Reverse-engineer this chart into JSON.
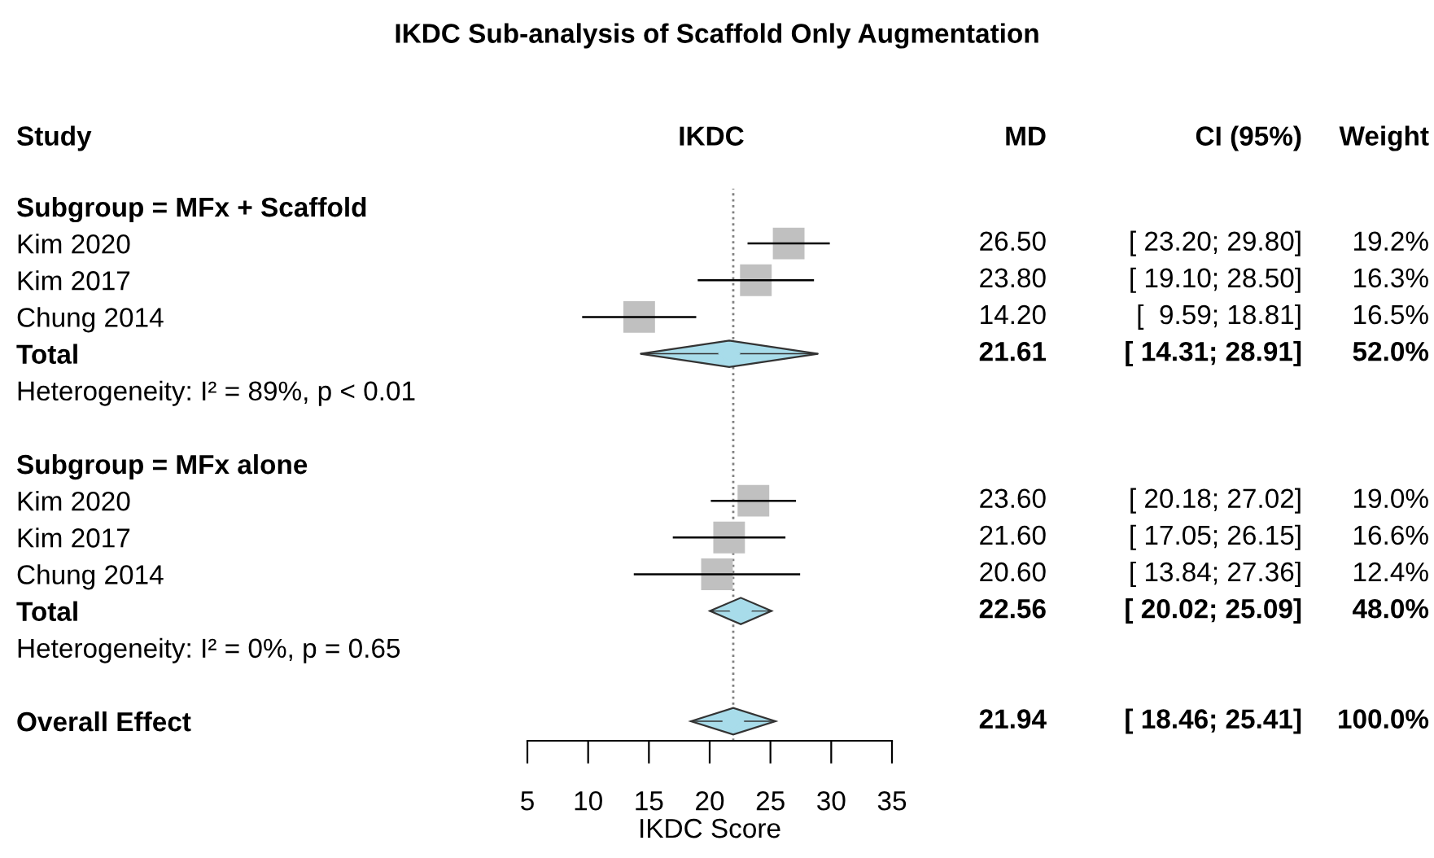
{
  "chart_data": {
    "type": "scatter",
    "orientation": "horizontal",
    "title": "IKDC Sub-analysis of Scaffold Only Augmentation",
    "xlabel": "IKDC Score",
    "categories": [
      "Subgroup = MFx + Scaffold",
      "Kim 2020",
      "Kim 2017",
      "Chung 2014",
      "Total",
      "Heterogeneity: I² = 89%, p < 0.01",
      null,
      "Subgroup = MFx alone",
      "Kim 2020",
      "Kim 2017",
      "Chung 2014",
      "Total",
      "Heterogeneity: I² = 0%, p = 0.65",
      null,
      "Overall Effect"
    ],
    "series": [
      {
        "marker": "square",
        "color": "#c0c0c0",
        "values": [
          null,
          26.5,
          23.8,
          14.2,
          null,
          null,
          null,
          null,
          23.6,
          21.6,
          20.6,
          null,
          null,
          null,
          null
        ],
        "errors": [
          null,
          [
            23.2,
            29.8
          ],
          [
            19.1,
            28.5
          ],
          [
            9.59,
            18.81
          ],
          null,
          null,
          null,
          null,
          [
            20.18,
            27.02
          ],
          [
            17.05,
            26.15
          ],
          [
            13.84,
            27.36
          ],
          null,
          null,
          null,
          null
        ],
        "value_labels": [
          null,
          "26.50 [ 23.20; 29.80] 19.2%",
          "23.80 [ 19.10; 28.50] 16.3%",
          "14.20 [  9.59; 18.81] 16.5%",
          null,
          null,
          null,
          null,
          "23.60 [ 20.18; 27.02] 19.0%",
          "21.60 [ 17.05; 26.15] 16.6%",
          "20.60 [ 13.84; 27.36] 12.4%",
          null,
          null,
          null,
          null
        ]
      },
      {
        "marker": "diamond",
        "color": "#a8dcea",
        "values": [
          null,
          null,
          null,
          null,
          21.61,
          null,
          null,
          null,
          null,
          null,
          null,
          22.56,
          null,
          null,
          21.94
        ],
        "errors": [
          null,
          null,
          null,
          null,
          [
            14.31,
            28.91
          ],
          null,
          null,
          null,
          null,
          null,
          null,
          [
            20.02,
            25.09
          ],
          null,
          null,
          [
            18.46,
            25.41
          ]
        ],
        "value_labels": [
          null,
          null,
          null,
          null,
          "21.61 [ 14.31; 28.91] 52.0%",
          null,
          null,
          null,
          null,
          null,
          null,
          "22.56 [ 20.02; 25.09] 48.0%",
          null,
          null,
          "21.94 [ 18.46; 25.41] 100.0%"
        ]
      }
    ],
    "ref_lines": [
      {
        "axis": "x",
        "value": 21.94,
        "color": "#808080",
        "line_style": "dotted"
      }
    ],
    "xlim": [
      5,
      35
    ],
    "xticks": [
      5,
      10,
      15,
      20,
      25,
      30,
      35
    ],
    "grid": false,
    "annotations": [
      "Study",
      "IKDC",
      "MD",
      "CI (95%)",
      "Weight"
    ]
  }
}
